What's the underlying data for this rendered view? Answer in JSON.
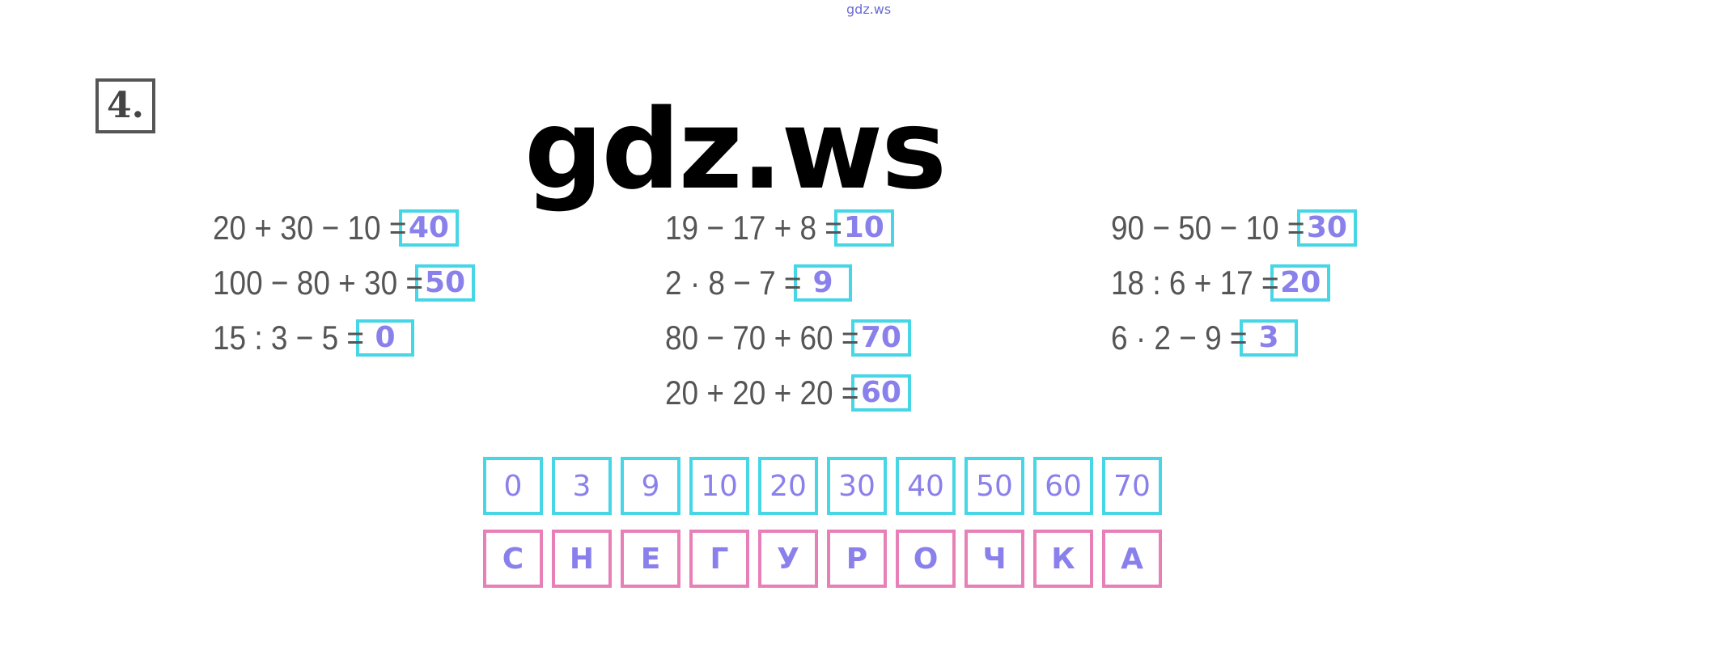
{
  "watermark_small": "gdz.ws",
  "watermark_big": "gdz.ws",
  "task_number": "4.",
  "colors": {
    "answer_box": "#47d6e6",
    "answer_text": "#8a80ec",
    "letter_box": "#e880b8",
    "expression": "#555555"
  },
  "columns": [
    [
      {
        "expr": "20 + 30 − 10 =",
        "answer": "40"
      },
      {
        "expr": "100 − 80 + 30 =",
        "answer": "50"
      },
      {
        "expr": "15 : 3 − 5 =",
        "answer": "0"
      }
    ],
    [
      {
        "expr": "19 − 17 + 8 =",
        "answer": "10"
      },
      {
        "expr": "2 · 8 − 7 =",
        "answer": "9"
      },
      {
        "expr": "80 − 70 + 60 =",
        "answer": "70"
      },
      {
        "expr": "20 + 20 + 20 =",
        "answer": "60"
      }
    ],
    [
      {
        "expr": "90 − 50 − 10 =",
        "answer": "30"
      },
      {
        "expr": "18 : 6 + 17 =",
        "answer": "20"
      },
      {
        "expr": "6 · 2 − 9 =",
        "answer": "3"
      }
    ]
  ],
  "code_numbers": [
    "0",
    "3",
    "9",
    "10",
    "20",
    "30",
    "40",
    "50",
    "60",
    "70"
  ],
  "code_letters": [
    "С",
    "Н",
    "Е",
    "Г",
    "У",
    "Р",
    "О",
    "Ч",
    "К",
    "А"
  ]
}
